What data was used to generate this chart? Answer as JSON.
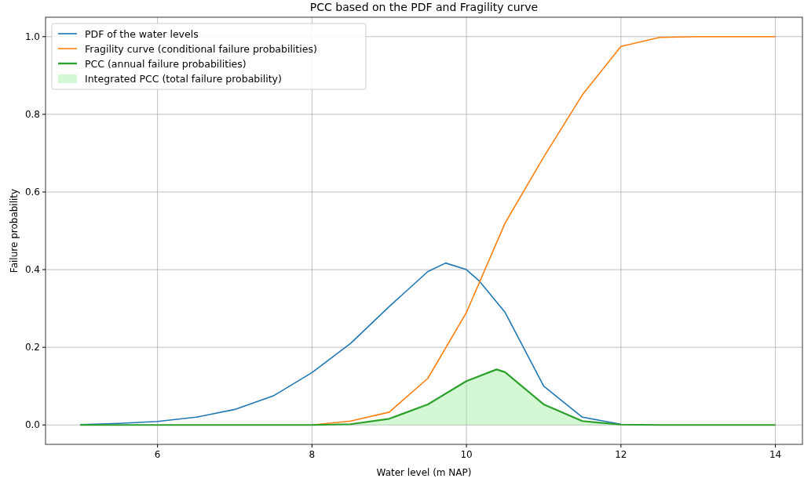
{
  "chart_data": {
    "type": "line",
    "title": "PCC based on the PDF and Fragility curve",
    "xlabel": "Water level (m NAP)",
    "ylabel": "Failure probability",
    "xlim": [
      4.55,
      14.35
    ],
    "ylim": [
      -0.05,
      1.05
    ],
    "xticks": [
      6,
      8,
      10,
      12,
      14
    ],
    "yticks": [
      {
        "value": 0,
        "label": "0.0"
      },
      {
        "value": 0.2,
        "label": "0.2"
      },
      {
        "value": 0.4,
        "label": "0.4"
      },
      {
        "value": 0.6,
        "label": "0.6"
      },
      {
        "value": 0.8,
        "label": "0.8"
      },
      {
        "value": 1,
        "label": "1.0"
      }
    ],
    "grid": true,
    "legend": "top left",
    "marker": "none",
    "line_style": "solid",
    "series": [
      {
        "name": "PDF of the water levels",
        "color": "#1f77b4",
        "x": [
          5,
          5.5,
          6,
          6.5,
          7,
          7.5,
          8,
          8.5,
          9,
          9.5,
          9.73,
          10,
          10.17,
          10.5,
          11,
          11.5,
          12
        ],
        "values": [
          0.001,
          0.004,
          0.009,
          0.02,
          0.04,
          0.075,
          0.135,
          0.21,
          0.305,
          0.395,
          0.417,
          0.4,
          0.37,
          0.29,
          0.1,
          0.02,
          0.002
        ]
      },
      {
        "name": "Fragility curve (conditional failure probabilities)",
        "color": "#ff7f0e",
        "x": [
          8,
          8.5,
          9,
          9.5,
          10,
          10.5,
          11,
          11.5,
          12,
          12.5,
          13,
          13.5,
          14
        ],
        "values": [
          0,
          0.01,
          0.033,
          0.12,
          0.29,
          0.52,
          0.69,
          0.85,
          0.975,
          0.998,
          1,
          1,
          1
        ]
      },
      {
        "name": "Integrated PCC (total failure probability)",
        "type": "area",
        "color": "#90ee90",
        "x": [
          8,
          8.5,
          9,
          9.5,
          10,
          10.39,
          10.5,
          11,
          11.5,
          12,
          12.5
        ],
        "values": [
          0,
          0.002,
          0.016,
          0.053,
          0.113,
          0.143,
          0.136,
          0.053,
          0.01,
          0.001,
          0
        ]
      },
      {
        "name": "PCC (annual failure probabilities)",
        "color": "#2ca02c",
        "x": [
          5,
          6,
          7,
          8,
          8.5,
          9,
          9.5,
          10,
          10.39,
          10.5,
          11,
          11.5,
          12,
          12.5,
          13,
          13.5,
          14
        ],
        "values": [
          0,
          0,
          0,
          0,
          0.002,
          0.016,
          0.053,
          0.113,
          0.143,
          0.136,
          0.053,
          0.01,
          0.001,
          0,
          0,
          0,
          0
        ]
      }
    ]
  }
}
